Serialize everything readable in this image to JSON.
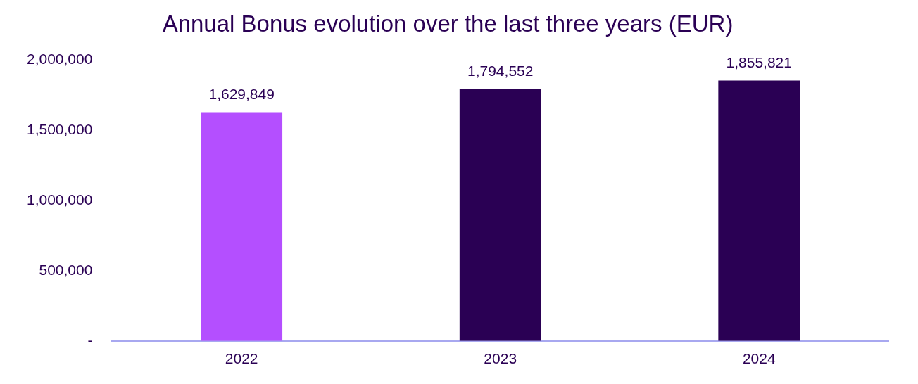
{
  "chart_data": {
    "type": "bar",
    "title": "Annual Bonus evolution over the last three years (EUR)",
    "categories": [
      "2022",
      "2023",
      "2024"
    ],
    "values": [
      1629849,
      1794552,
      1855821
    ],
    "colors": [
      "#b44fff",
      "#2a0054",
      "#2a0054"
    ],
    "ylim": [
      0,
      2000000
    ],
    "yticks": [
      {
        "value": 0,
        "label": "-"
      },
      {
        "value": 500000,
        "label": "500,000"
      },
      {
        "value": 1000000,
        "label": "1,000,000"
      },
      {
        "value": 1500000,
        "label": "1,500,000"
      },
      {
        "value": 2000000,
        "label": "2,000,000"
      }
    ],
    "value_labels": [
      "1,629,849",
      "1,794,552",
      "1,855,821"
    ],
    "grid": false,
    "legend": false
  }
}
